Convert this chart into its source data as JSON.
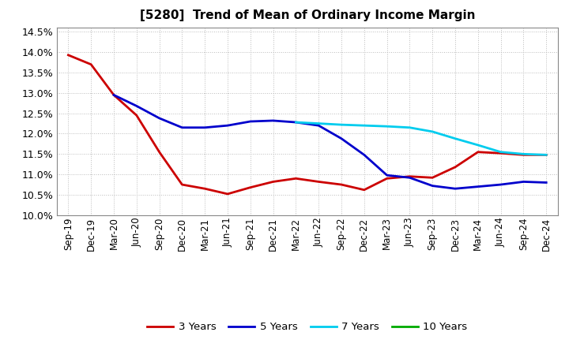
{
  "title": "[5280]  Trend of Mean of Ordinary Income Margin",
  "background_color": "#ffffff",
  "plot_bg_color": "#ffffff",
  "grid_color": "#bbbbbb",
  "ylim": [
    0.1,
    0.146
  ],
  "yticks": [
    0.1,
    0.105,
    0.11,
    0.115,
    0.12,
    0.125,
    0.13,
    0.135,
    0.14,
    0.145
  ],
  "series": {
    "3 Years": {
      "color": "#cc0000",
      "data": [
        [
          "Sep-19",
          0.1393
        ],
        [
          "Dec-19",
          0.137
        ],
        [
          "Mar-20",
          0.1295
        ],
        [
          "Jun-20",
          0.1245
        ],
        [
          "Sep-20",
          0.1155
        ],
        [
          "Dec-20",
          0.1075
        ],
        [
          "Mar-21",
          0.1065
        ],
        [
          "Jun-21",
          0.1052
        ],
        [
          "Sep-21",
          0.1068
        ],
        [
          "Dec-21",
          0.1082
        ],
        [
          "Mar-22",
          0.109
        ],
        [
          "Jun-22",
          0.1082
        ],
        [
          "Sep-22",
          0.1075
        ],
        [
          "Dec-22",
          0.1062
        ],
        [
          "Mar-23",
          0.109
        ],
        [
          "Jun-23",
          0.1095
        ],
        [
          "Sep-23",
          0.1092
        ],
        [
          "Dec-23",
          0.1118
        ],
        [
          "Mar-24",
          0.1155
        ],
        [
          "Jun-24",
          0.1152
        ],
        [
          "Sep-24",
          0.1148
        ],
        [
          "Dec-24",
          0.1148
        ]
      ]
    },
    "5 Years": {
      "color": "#0000cc",
      "data": [
        [
          "Mar-20",
          0.1295
        ],
        [
          "Jun-20",
          0.1268
        ],
        [
          "Sep-20",
          0.1238
        ],
        [
          "Dec-20",
          0.1215
        ],
        [
          "Mar-21",
          0.1215
        ],
        [
          "Jun-21",
          0.122
        ],
        [
          "Sep-21",
          0.123
        ],
        [
          "Dec-21",
          0.1232
        ],
        [
          "Mar-22",
          0.1228
        ],
        [
          "Jun-22",
          0.122
        ],
        [
          "Sep-22",
          0.1188
        ],
        [
          "Dec-22",
          0.1148
        ],
        [
          "Mar-23",
          0.1098
        ],
        [
          "Jun-23",
          0.1092
        ],
        [
          "Sep-23",
          0.1072
        ],
        [
          "Dec-23",
          0.1065
        ],
        [
          "Mar-24",
          0.107
        ],
        [
          "Jun-24",
          0.1075
        ],
        [
          "Sep-24",
          0.1082
        ],
        [
          "Dec-24",
          0.108
        ]
      ]
    },
    "7 Years": {
      "color": "#00ccee",
      "data": [
        [
          "Mar-22",
          0.1228
        ],
        [
          "Jun-22",
          0.1225
        ],
        [
          "Sep-22",
          0.1222
        ],
        [
          "Dec-22",
          0.122
        ],
        [
          "Mar-23",
          0.1218
        ],
        [
          "Jun-23",
          0.1215
        ],
        [
          "Sep-23",
          0.1205
        ],
        [
          "Dec-23",
          0.1188
        ],
        [
          "Mar-24",
          0.1172
        ],
        [
          "Jun-24",
          0.1155
        ],
        [
          "Sep-24",
          0.115
        ],
        [
          "Dec-24",
          0.1148
        ]
      ]
    },
    "10 Years": {
      "color": "#00aa00",
      "data": []
    }
  },
  "xtick_labels": [
    "Sep-19",
    "Dec-19",
    "Mar-20",
    "Jun-20",
    "Sep-20",
    "Dec-20",
    "Mar-21",
    "Jun-21",
    "Sep-21",
    "Dec-21",
    "Mar-22",
    "Jun-22",
    "Sep-22",
    "Dec-22",
    "Mar-23",
    "Jun-23",
    "Sep-23",
    "Dec-23",
    "Mar-24",
    "Jun-24",
    "Sep-24",
    "Dec-24"
  ],
  "legend_labels": [
    "3 Years",
    "5 Years",
    "7 Years",
    "10 Years"
  ],
  "legend_colors": [
    "#cc0000",
    "#0000cc",
    "#00ccee",
    "#00aa00"
  ]
}
